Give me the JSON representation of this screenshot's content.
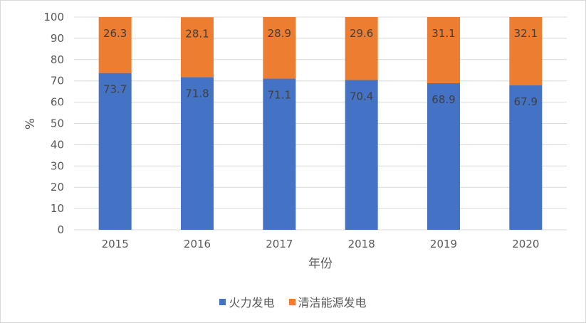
{
  "chart_data": {
    "type": "bar",
    "stacked": true,
    "title": "",
    "xlabel": "年份",
    "ylabel": "%",
    "ylim": [
      0,
      100
    ],
    "yticks": [
      0,
      10,
      20,
      30,
      40,
      50,
      60,
      70,
      80,
      90,
      100
    ],
    "categories": [
      "2015",
      "2016",
      "2017",
      "2018",
      "2019",
      "2020"
    ],
    "series": [
      {
        "name": "火力发电",
        "values": [
          73.7,
          71.8,
          71.1,
          70.4,
          68.9,
          67.9
        ],
        "labels": [
          "73.7",
          "71.8",
          "71.1",
          "70.4",
          "68.9",
          "67.9"
        ],
        "color": "#4472c4"
      },
      {
        "name": "清洁能源发电",
        "values": [
          26.3,
          28.1,
          28.9,
          29.6,
          31.1,
          32.1
        ],
        "labels": [
          "26.3",
          "28.1",
          "28.9",
          "29.6",
          "31.1",
          "32.1"
        ],
        "color": "#ed7d31"
      }
    ],
    "grid": true,
    "legend_position": "bottom",
    "gridline_color": "#d9d9d9"
  }
}
